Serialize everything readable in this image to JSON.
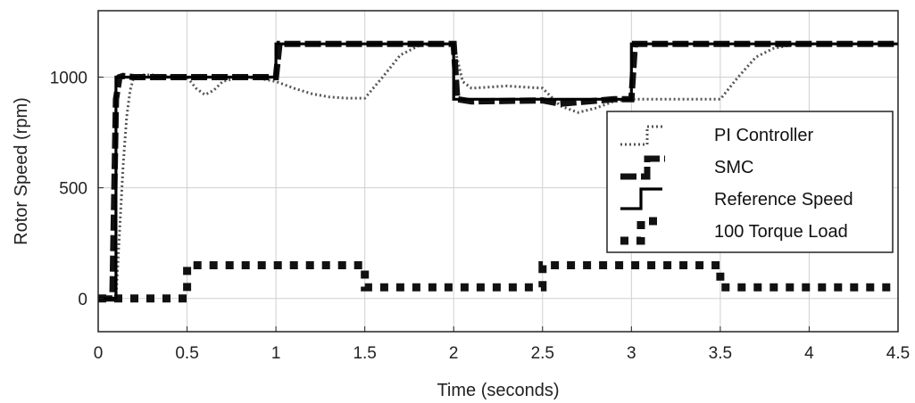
{
  "chart_data": {
    "type": "line",
    "title": "",
    "xlabel": "Time (seconds)",
    "ylabel": "Rotor Speed (rpm)",
    "xlim": [
      0,
      4.5
    ],
    "ylim": [
      -150,
      1300
    ],
    "xticks": [
      0,
      0.5,
      1,
      1.5,
      2,
      2.5,
      3,
      3.5,
      4,
      4.5
    ],
    "xtick_labels": [
      "0",
      "0.5",
      "1",
      "1.5",
      "2",
      "2.5",
      "3",
      "3.5",
      "4",
      "4.5"
    ],
    "yticks": [
      0,
      500,
      1000
    ],
    "ytick_labels": [
      "0",
      "500",
      "1000"
    ],
    "grid": true,
    "legend_position": "right",
    "series": [
      {
        "name": "PI Controller",
        "style": "dotted",
        "color": "#555555",
        "x": [
          0,
          0.1,
          0.12,
          0.14,
          0.16,
          0.18,
          0.2,
          0.25,
          0.3,
          0.4,
          0.5,
          0.55,
          0.6,
          0.65,
          0.7,
          0.8,
          0.9,
          1.0,
          1.1,
          1.2,
          1.3,
          1.4,
          1.5,
          1.6,
          1.7,
          1.8,
          1.9,
          2.0,
          2.05,
          2.1,
          2.2,
          2.3,
          2.4,
          2.5,
          2.6,
          2.7,
          2.8,
          2.9,
          3.0,
          3.1,
          3.2,
          3.3,
          3.4,
          3.5,
          3.6,
          3.7,
          3.8,
          3.9,
          4.0,
          4.2,
          4.5
        ],
        "y": [
          0,
          0,
          300,
          600,
          820,
          940,
          1000,
          1010,
          1010,
          1005,
          1000,
          950,
          920,
          940,
          980,
          1000,
          995,
          980,
          950,
          925,
          910,
          905,
          905,
          1000,
          1100,
          1140,
          1150,
          1150,
          980,
          950,
          955,
          960,
          955,
          950,
          870,
          840,
          860,
          890,
          900,
          900,
          900,
          900,
          900,
          900,
          1000,
          1090,
          1130,
          1145,
          1150,
          1150,
          1150
        ]
      },
      {
        "name": "SMC",
        "style": "thick-dashed",
        "color": "#111111",
        "x": [
          0,
          0.08,
          0.1,
          0.12,
          0.14,
          0.2,
          0.5,
          1.0,
          1.02,
          1.1,
          1.5,
          1.9,
          2.0,
          2.02,
          2.1,
          2.5,
          2.6,
          2.9,
          3.0,
          3.02,
          3.5,
          4.0,
          4.5
        ],
        "y": [
          0,
          0,
          900,
          1000,
          1005,
          1000,
          1000,
          1000,
          1150,
          1150,
          1150,
          1150,
          1150,
          900,
          890,
          895,
          880,
          900,
          900,
          1150,
          1150,
          1150,
          1150
        ]
      },
      {
        "name": "Reference Speed",
        "style": "solid",
        "color": "#000000",
        "x": [
          0,
          0.1,
          0.1,
          1.0,
          1.0,
          2.0,
          2.0,
          3.0,
          3.0,
          4.5
        ],
        "y": [
          0,
          0,
          1000,
          1000,
          1150,
          1150,
          900,
          900,
          1150,
          1150
        ]
      },
      {
        "name": "100 Torque Load",
        "style": "square-dashed",
        "color": "#111111",
        "x": [
          0,
          0.5,
          0.5,
          1.5,
          1.5,
          2.5,
          2.5,
          3.5,
          3.5,
          4.5
        ],
        "y": [
          0,
          0,
          150,
          150,
          50,
          50,
          150,
          150,
          50,
          50
        ]
      }
    ],
    "legend": {
      "entries": [
        "PI Controller",
        "SMC",
        "Reference Speed",
        "100 Torque Load"
      ]
    }
  }
}
